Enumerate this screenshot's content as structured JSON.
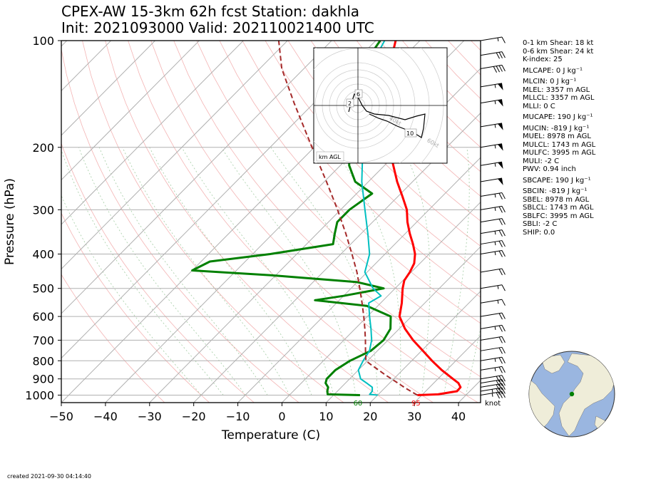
{
  "title": {
    "line1": "CPEX-AW 15-3km  62h fcst  Station: dakhla",
    "line2": "Init: 2021093000  Valid: 202110021400 UTC"
  },
  "chart_data": {
    "type": "line",
    "subtype": "skew-T log-P sounding",
    "xlabel": "Temperature (C)",
    "ylabel": "Pressure (hPa)",
    "xlim": [
      -50,
      45
    ],
    "ylim_hpa": [
      1050,
      100
    ],
    "y_scale": "log",
    "x_ticks": [
      -50,
      -40,
      -30,
      -20,
      -10,
      0,
      10,
      20,
      30,
      40
    ],
    "x_tick_labels": [
      "−50",
      "−40",
      "−30",
      "−20",
      "−10",
      "0",
      "10",
      "20",
      "30",
      "40"
    ],
    "y_ticks": [
      1000,
      900,
      800,
      700,
      600,
      500,
      400,
      300,
      200,
      100
    ],
    "y_tick_labels": [
      "1000",
      "900",
      "800",
      "700",
      "600",
      "500",
      "400",
      "300",
      "200",
      "100"
    ],
    "grid": true,
    "series": [
      {
        "key": "temperature",
        "color": "#ff0000",
        "points": [
          [
            1000,
            29
          ],
          [
            995,
            33.5
          ],
          [
            975,
            37.1
          ],
          [
            950,
            37.0
          ],
          [
            925,
            35.6
          ],
          [
            900,
            33.4
          ],
          [
            850,
            28.9
          ],
          [
            800,
            24.6
          ],
          [
            750,
            20.3
          ],
          [
            700,
            15.7
          ],
          [
            650,
            11.3
          ],
          [
            600,
            7.3
          ],
          [
            550,
            4.8
          ],
          [
            500,
            1.7
          ],
          [
            475,
            0.3
          ],
          [
            450,
            -0.3
          ],
          [
            425,
            -1.3
          ],
          [
            400,
            -3.2
          ],
          [
            375,
            -5.9
          ],
          [
            350,
            -9.0
          ],
          [
            325,
            -12.1
          ],
          [
            300,
            -15.0
          ],
          [
            275,
            -19.0
          ],
          [
            250,
            -23.5
          ],
          [
            225,
            -28.0
          ],
          [
            200,
            -33.0
          ],
          [
            175,
            -38.3
          ],
          [
            150,
            -44.0
          ],
          [
            125,
            -49.5
          ],
          [
            110,
            -53.0
          ],
          [
            100,
            -55.5
          ]
        ]
      },
      {
        "key": "dewpoint",
        "color": "#008000",
        "points": [
          [
            1000,
            16
          ],
          [
            995,
            8.5
          ],
          [
            975,
            7.7
          ],
          [
            950,
            7.0
          ],
          [
            925,
            5.5
          ],
          [
            900,
            4.8
          ],
          [
            850,
            4.8
          ],
          [
            800,
            6.0
          ],
          [
            750,
            8.5
          ],
          [
            700,
            9.0
          ],
          [
            650,
            8.0
          ],
          [
            600,
            5.3
          ],
          [
            560,
            -2.5
          ],
          [
            540,
            -15.5
          ],
          [
            525,
            -10
          ],
          [
            500,
            -2.6
          ],
          [
            480,
            -10
          ],
          [
            460,
            -30
          ],
          [
            445,
            -50
          ],
          [
            420,
            -48
          ],
          [
            400,
            -36
          ],
          [
            375,
            -24
          ],
          [
            350,
            -26
          ],
          [
            325,
            -28
          ],
          [
            300,
            -28
          ],
          [
            270,
            -26.5
          ],
          [
            250,
            -33
          ],
          [
            225,
            -38
          ],
          [
            200,
            -42
          ],
          [
            175,
            -46
          ],
          [
            150,
            -54
          ],
          [
            135,
            -55
          ],
          [
            120,
            -56
          ],
          [
            110,
            -58
          ],
          [
            100,
            -59
          ]
        ]
      },
      {
        "key": "wet-bulb",
        "color": "#00bfc0",
        "points": [
          [
            1000,
            20
          ],
          [
            995,
            18
          ],
          [
            975,
            17.9
          ],
          [
            950,
            17.0
          ],
          [
            925,
            14.8
          ],
          [
            900,
            12.5
          ],
          [
            850,
            10.0
          ],
          [
            800,
            9.0
          ],
          [
            750,
            8.2
          ],
          [
            700,
            6.3
          ],
          [
            650,
            3.6
          ],
          [
            600,
            0.5
          ],
          [
            550,
            -2.7
          ],
          [
            525,
            -1.5
          ],
          [
            500,
            -5
          ],
          [
            450,
            -10.5
          ],
          [
            400,
            -13.5
          ],
          [
            350,
            -18.5
          ],
          [
            300,
            -24.5
          ],
          [
            250,
            -31.5
          ],
          [
            200,
            -39
          ],
          [
            175,
            -43
          ],
          [
            150,
            -49
          ],
          [
            125,
            -54
          ],
          [
            110,
            -56.5
          ],
          [
            100,
            -58
          ]
        ]
      },
      {
        "key": "parcel",
        "color": "#a52a2a",
        "points": [
          [
            1000,
            29
          ],
          [
            975,
            26.6
          ],
          [
            950,
            24.2
          ],
          [
            925,
            21.9
          ],
          [
            900,
            19.5
          ],
          [
            875,
            17.0
          ],
          [
            850,
            14.6
          ],
          [
            825,
            12.1
          ],
          [
            800,
            9.6
          ],
          [
            775,
            8.5
          ],
          [
            750,
            7.3
          ],
          [
            700,
            4.9
          ],
          [
            650,
            2.2
          ],
          [
            600,
            -0.8
          ],
          [
            550,
            -4.2
          ],
          [
            500,
            -8.0
          ],
          [
            450,
            -12.3
          ],
          [
            400,
            -17.5
          ],
          [
            350,
            -23.5
          ],
          [
            300,
            -30.7
          ],
          [
            250,
            -39.5
          ],
          [
            200,
            -50.5
          ],
          [
            150,
            -64.5
          ],
          [
            120,
            -75
          ],
          [
            100,
            -82
          ]
        ]
      }
    ],
    "annotations": {
      "surface_dewpoint": "60",
      "surface_temperature": "95",
      "barb_units": "knot"
    },
    "hodograph": {
      "inset_label": "km AGL",
      "ring_labels": [
        "20kt",
        "40kt",
        "60kt",
        "80kt"
      ],
      "height_labels": [
        "2",
        "6",
        "10"
      ],
      "line_color": "#000000"
    },
    "wind_barbs": [
      {
        "p": 1000,
        "speed": 35
      },
      {
        "p": 975,
        "speed": 35
      },
      {
        "p": 950,
        "speed": 30
      },
      {
        "p": 925,
        "speed": 30
      },
      {
        "p": 900,
        "speed": 30
      },
      {
        "p": 850,
        "speed": 25
      },
      {
        "p": 800,
        "speed": 25
      },
      {
        "p": 750,
        "speed": 20
      },
      {
        "p": 700,
        "speed": 20
      },
      {
        "p": 650,
        "speed": 25
      },
      {
        "p": 600,
        "speed": 20
      },
      {
        "p": 550,
        "speed": 15
      },
      {
        "p": 500,
        "speed": 15
      },
      {
        "p": 450,
        "speed": 20
      },
      {
        "p": 400,
        "speed": 25
      },
      {
        "p": 375,
        "speed": 25
      },
      {
        "p": 350,
        "speed": 25
      },
      {
        "p": 325,
        "speed": 20
      },
      {
        "p": 300,
        "speed": 25
      },
      {
        "p": 275,
        "speed": 25
      },
      {
        "p": 250,
        "speed": 50
      },
      {
        "p": 225,
        "speed": 55
      },
      {
        "p": 200,
        "speed": 55
      },
      {
        "p": 175,
        "speed": 55
      },
      {
        "p": 150,
        "speed": 55
      },
      {
        "p": 135,
        "speed": 55
      },
      {
        "p": 120,
        "speed": 40
      },
      {
        "p": 110,
        "speed": 30
      },
      {
        "p": 100,
        "speed": 15
      }
    ]
  },
  "stats": [
    "0-1 km Shear: 18 kt",
    "0-6 km Shear: 24 kt",
    "K-index: 25",
    "MLCAPE: 0 J kg⁻¹",
    "MLCIN: 0 J kg⁻¹",
    "MLEL: 3357 m AGL",
    "MLLCL: 3357 m AGL",
    "MLLI: 0 C",
    "MUCAPE: 190 J kg⁻¹",
    "MUCIN: -819 J kg⁻¹",
    "MUEL: 8978 m AGL",
    "MULCL: 1743 m AGL",
    "MULFC: 3995 m AGL",
    "MULI: -2 C",
    "PWV: 0.94 inch",
    "SBCAPE: 190 J kg⁻¹",
    "SBCIN: -819 J kg⁻¹",
    "SBEL: 8978 m AGL",
    "SBLCL: 1743 m AGL",
    "SBLFC: 3995 m AGL",
    "SBLI: -2 C",
    "SHIP: 0.0"
  ],
  "globe": {
    "ocean_color": "#9ab6e0",
    "land_color": "#efedd9",
    "marker_color": "#008000"
  },
  "footer": {
    "created": "created 2021-09-30 04:14:40"
  }
}
